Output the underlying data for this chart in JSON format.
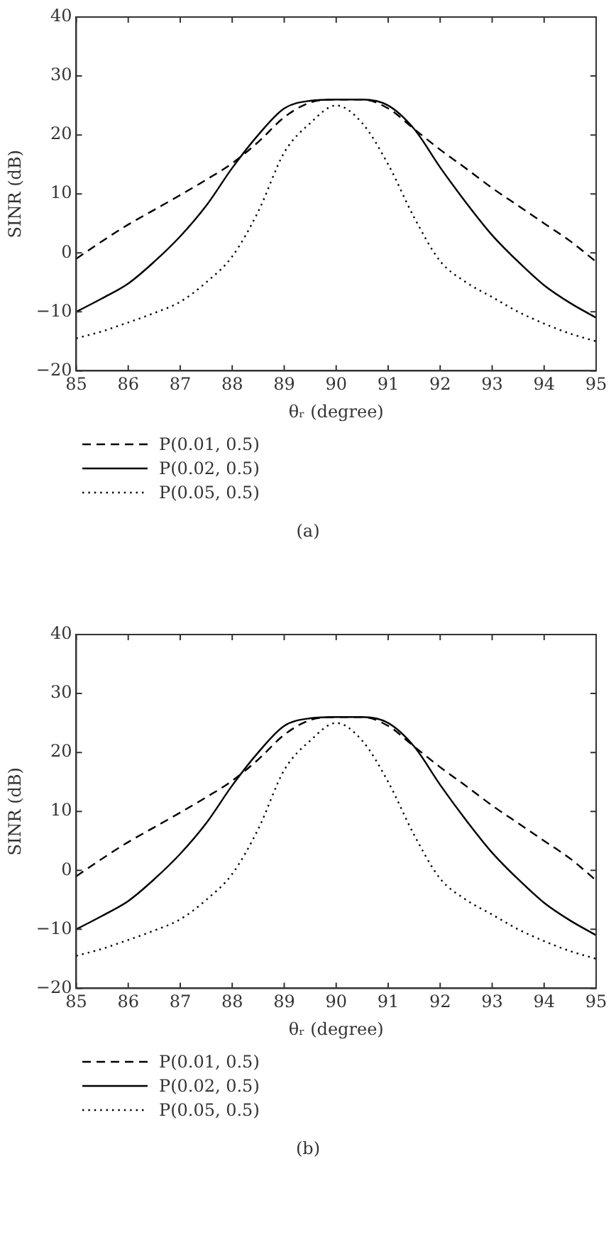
{
  "chart_data": [
    {
      "type": "line",
      "xlabel": "θᵣ (degree)",
      "ylabel": "SINR (dB)",
      "x": [
        85,
        85.5,
        86,
        86.5,
        87,
        87.5,
        88,
        88.5,
        89,
        89.5,
        90,
        90.5,
        91,
        91.5,
        92,
        92.5,
        93,
        93.5,
        94,
        94.5,
        95
      ],
      "xlim": [
        85,
        95
      ],
      "xticks": [
        85,
        86,
        87,
        88,
        89,
        90,
        91,
        92,
        93,
        94,
        95
      ],
      "ylim": [
        -20,
        40
      ],
      "yticks": [
        -20,
        -10,
        0,
        10,
        20,
        30,
        40
      ],
      "grid": false,
      "legend": "bottom",
      "marker": "none",
      "annotations": [
        "(a)"
      ],
      "series": [
        {
          "name": "P(0.01, 0.5)",
          "color": "#000000",
          "line_style": "dashed",
          "values": [
            -1,
            2,
            4.8,
            7.3,
            9.8,
            12.4,
            15.2,
            18.8,
            23,
            25.5,
            26,
            26,
            24.5,
            21,
            17.5,
            14.3,
            11,
            8,
            5,
            2,
            -1.5
          ]
        },
        {
          "name": "P(0.02, 0.5)",
          "color": "#000000",
          "line_style": "solid",
          "values": [
            -10,
            -7.7,
            -5.2,
            -1.5,
            2.8,
            8,
            14.4,
            20,
            24.5,
            25.8,
            26,
            26,
            25,
            21,
            14.5,
            8.5,
            3,
            -1.5,
            -5.5,
            -8.5,
            -11
          ]
        },
        {
          "name": "P(0.05, 0.5)",
          "color": "#000000",
          "line_style": "dotted",
          "values": [
            -14.5,
            -13.3,
            -11.8,
            -10.2,
            -8.3,
            -5,
            -0.6,
            7,
            17,
            22,
            25,
            22,
            15,
            6,
            -1.4,
            -5,
            -7.5,
            -10,
            -12,
            -13.7,
            -15
          ]
        }
      ]
    },
    {
      "type": "line",
      "xlabel": "θᵣ (degree)",
      "ylabel": "SINR (dB)",
      "x": [
        85,
        85.5,
        86,
        86.5,
        87,
        87.5,
        88,
        88.5,
        89,
        89.5,
        90,
        90.5,
        91,
        91.5,
        92,
        92.5,
        93,
        93.5,
        94,
        94.5,
        95
      ],
      "xlim": [
        85,
        95
      ],
      "xticks": [
        85,
        86,
        87,
        88,
        89,
        90,
        91,
        92,
        93,
        94,
        95
      ],
      "ylim": [
        -20,
        40
      ],
      "yticks": [
        -20,
        -10,
        0,
        10,
        20,
        30,
        40
      ],
      "grid": false,
      "legend": "bottom",
      "marker": "none",
      "annotations": [
        "(b)"
      ],
      "series": [
        {
          "name": "P(0.01, 0.5)",
          "color": "#000000",
          "line_style": "dashed",
          "values": [
            -1,
            2,
            4.8,
            7.3,
            9.8,
            12.4,
            15.2,
            18.8,
            23,
            25.5,
            26,
            26,
            24.5,
            21,
            17.5,
            14.3,
            11,
            8,
            5,
            2,
            -1.7
          ]
        },
        {
          "name": "P(0.02, 0.5)",
          "color": "#000000",
          "line_style": "solid",
          "values": [
            -10,
            -7.7,
            -5.2,
            -1.5,
            2.8,
            8,
            14.4,
            20,
            24.5,
            25.8,
            26,
            26,
            25,
            21,
            14.5,
            8.5,
            3,
            -1.5,
            -5.5,
            -8.5,
            -11
          ]
        },
        {
          "name": "P(0.05, 0.5)",
          "color": "#000000",
          "line_style": "dotted",
          "values": [
            -14.5,
            -13.3,
            -11.8,
            -10.2,
            -8.3,
            -5,
            -0.6,
            7,
            17,
            22,
            25,
            22,
            15,
            6,
            -1.4,
            -5,
            -7.5,
            -10,
            -12,
            -13.7,
            -15
          ]
        }
      ]
    }
  ]
}
